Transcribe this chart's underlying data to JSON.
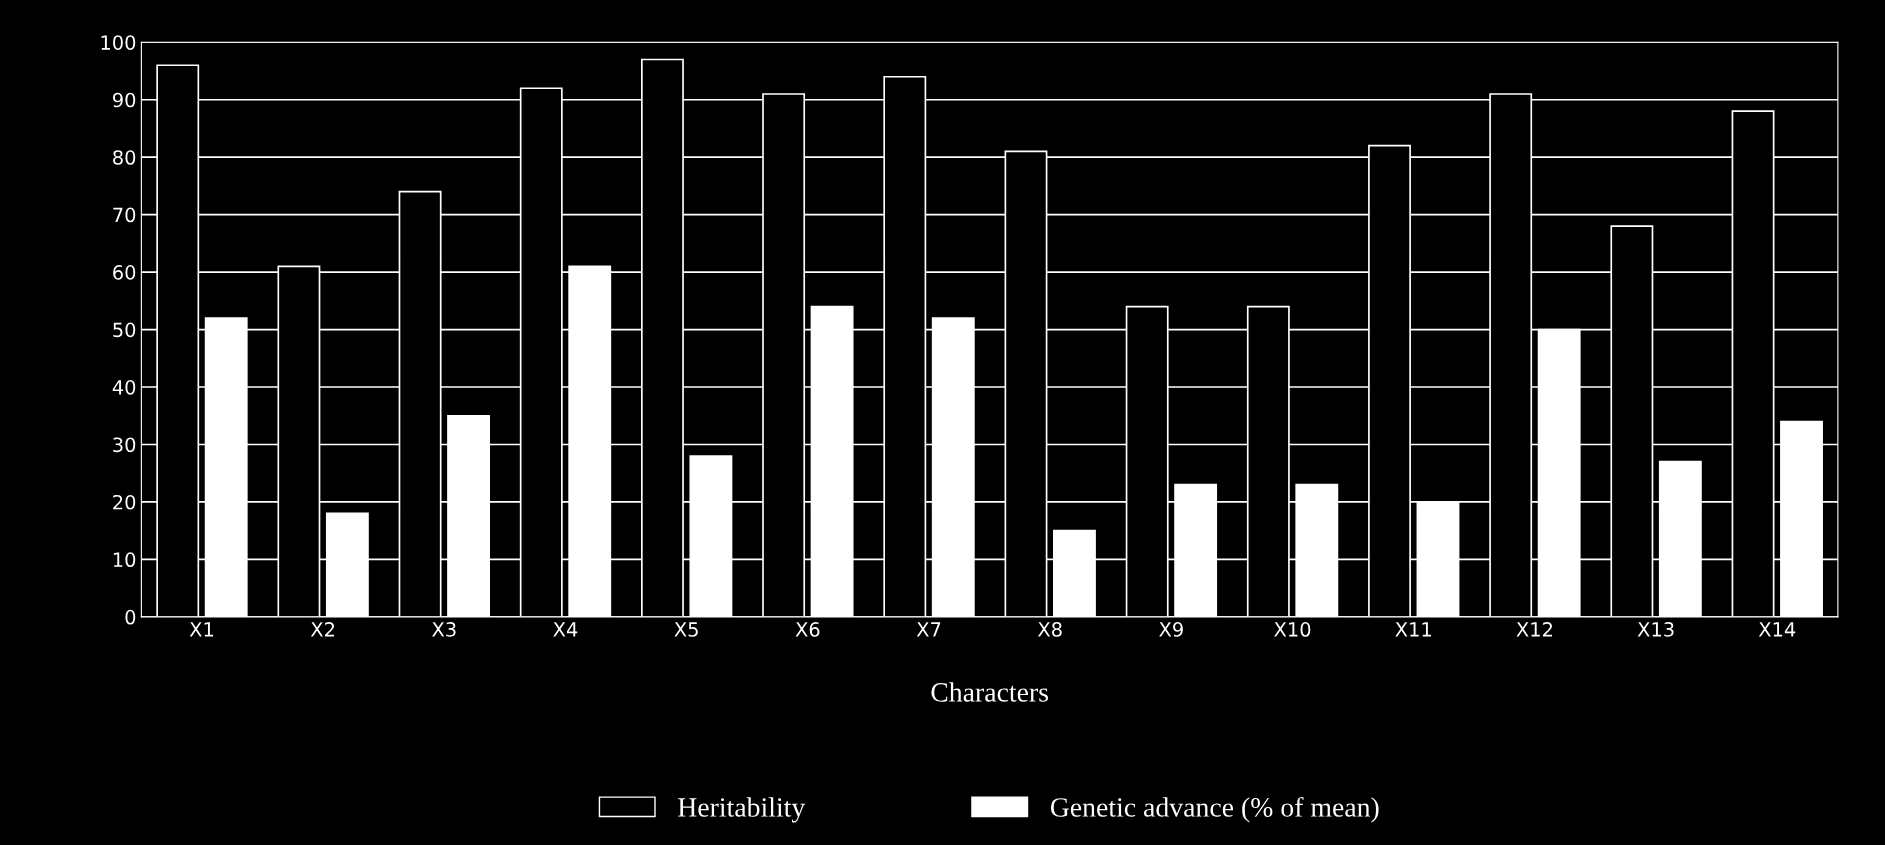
{
  "chart_data": {
    "type": "bar",
    "xlabel": "Characters",
    "categories": [
      "X1",
      "X2",
      "X3",
      "X4",
      "X5",
      "X6",
      "X7",
      "X8",
      "X9",
      "X10",
      "X11",
      "X12",
      "X13",
      "X14"
    ],
    "series": [
      {
        "name": "Heritability",
        "color": "#000000",
        "values": [
          96,
          61,
          74,
          92,
          97,
          91,
          94,
          81,
          54,
          54,
          82,
          91,
          68,
          88
        ]
      },
      {
        "name": "Genetic advance (% of mean)",
        "color": "#ffffff",
        "values": [
          52,
          18,
          35,
          61,
          28,
          54,
          52,
          15,
          23,
          23,
          20,
          50,
          27,
          34
        ]
      }
    ],
    "ylim": [
      0,
      100
    ],
    "yticks": [
      0,
      10,
      20,
      30,
      40,
      50,
      60,
      70,
      80,
      90,
      100
    ],
    "grid": "y",
    "legend": "bottom"
  }
}
